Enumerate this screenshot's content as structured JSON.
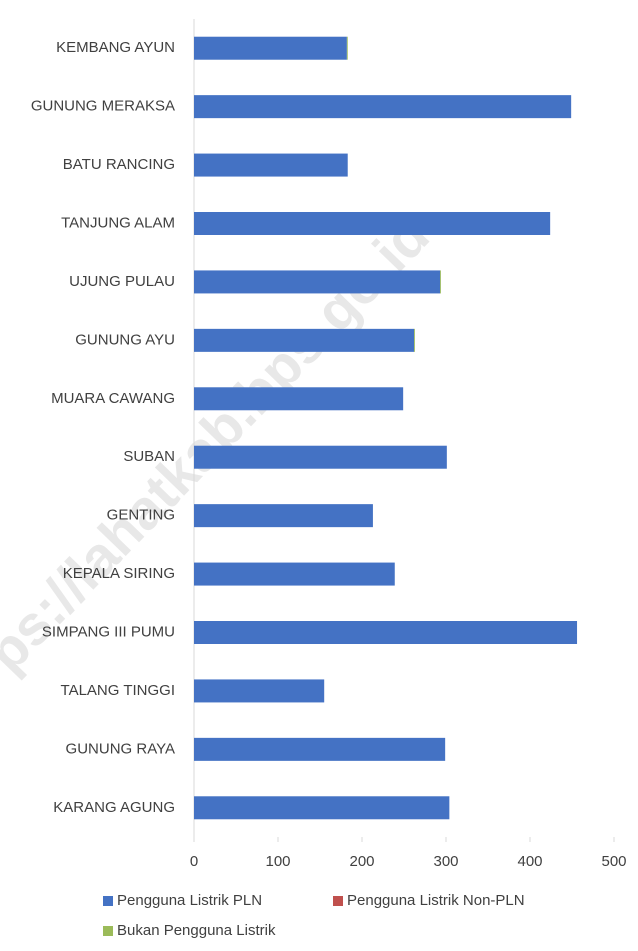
{
  "chart_data": {
    "type": "bar",
    "orientation": "horizontal",
    "stacked": true,
    "watermark": "ps://lahatkab.bps.go.id",
    "categories": [
      "KEMBANG AYUN",
      "GUNUNG MERAKSA",
      "BATU RANCING",
      "TANJUNG ALAM",
      "UJUNG PULAU",
      "GUNUNG AYU",
      "MUARA CAWANG",
      "SUBAN",
      "GENTING",
      "KEPALA SIRING",
      "SIMPANG III PUMU",
      "TALANG TINGGI",
      "GUNUNG RAYA",
      "KARANG AGUNG"
    ],
    "series": [
      {
        "name": "Pengguna Listrik PLN",
        "color": "#4472c4",
        "values": [
          182,
          449,
          183,
          424,
          293,
          262,
          249,
          301,
          213,
          239,
          456,
          155,
          299,
          304
        ]
      },
      {
        "name": "Pengguna Listrik Non-PLN",
        "color": "#c0504d",
        "values": [
          0,
          0,
          0,
          0,
          0,
          0,
          0,
          0,
          0,
          0,
          0,
          0,
          0,
          0
        ]
      },
      {
        "name": "Bukan Pengguna Listrik",
        "color": "#9bbb59",
        "values": [
          1,
          0,
          0,
          0,
          1,
          1,
          0,
          0,
          0,
          0,
          0,
          0,
          0,
          0
        ]
      }
    ],
    "xlim": [
      0,
      500
    ],
    "xticks": [
      0,
      100,
      200,
      300,
      400,
      500
    ],
    "grid": false,
    "legend": "bottom"
  }
}
